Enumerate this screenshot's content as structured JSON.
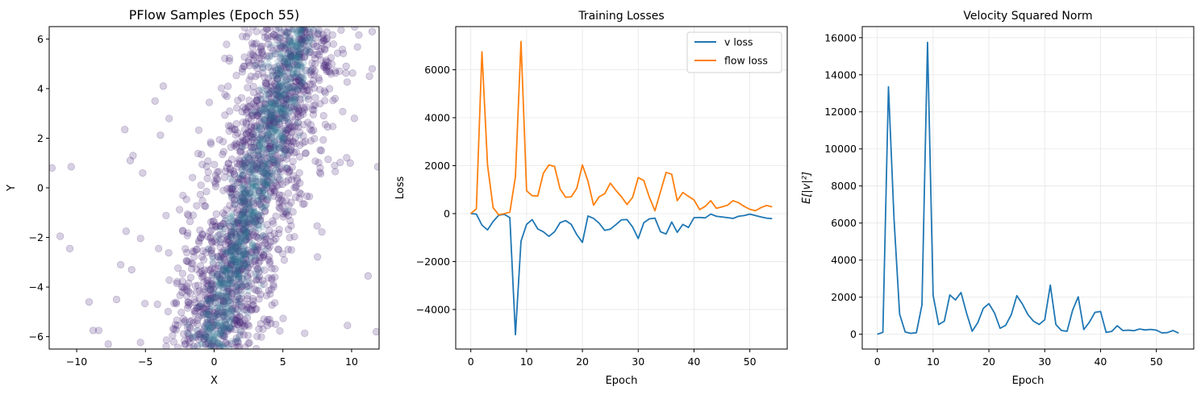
{
  "chart_data": [
    {
      "type": "scatter",
      "title": "PFlow Samples (Epoch 55)",
      "xlabel": "X",
      "ylabel": "Y",
      "xlim": [
        -12,
        12
      ],
      "ylim": [
        -6.5,
        6.5
      ],
      "xticks": [
        -10,
        -5,
        0,
        5,
        10
      ],
      "yticks": [
        -6,
        -4,
        -2,
        0,
        2,
        4,
        6
      ],
      "grid": false,
      "colors": {
        "outer": "#4b2a7a",
        "inner": "#2c728e"
      },
      "points": [
        [
          -11.8,
          0.8
        ],
        [
          -10.4,
          0.85
        ],
        [
          -10.5,
          -2.45
        ],
        [
          -11.2,
          -1.95
        ],
        [
          -9.1,
          -4.6
        ],
        [
          -8.4,
          -5.75
        ],
        [
          -8.8,
          -5.75
        ],
        [
          -7.7,
          -6.3
        ],
        [
          -6.5,
          2.35
        ],
        [
          -6.1,
          1.1
        ],
        [
          -5.9,
          1.3
        ],
        [
          -6.4,
          -1.75
        ],
        [
          -6.8,
          -3.1
        ],
        [
          -6.0,
          -3.3
        ],
        [
          -5.2,
          0.6
        ],
        [
          -4.3,
          3.5
        ],
        [
          -3.7,
          4.1
        ],
        [
          -7.1,
          -4.5
        ],
        [
          11.5,
          4.8
        ],
        [
          11.3,
          4.5
        ],
        [
          11.9,
          0.85
        ],
        [
          11.2,
          -3.55
        ],
        [
          11.8,
          -5.8
        ],
        [
          9.7,
          -5.55
        ],
        [
          9.9,
          1.0
        ],
        [
          10.2,
          2.8
        ],
        [
          11.5,
          6.3
        ],
        [
          9.6,
          4.9
        ],
        [
          8.8,
          3.6
        ],
        [
          7.8,
          1.5
        ]
      ]
    },
    {
      "type": "line",
      "title": "Training Losses",
      "xlabel": "Epoch",
      "ylabel": "Loss",
      "xlim": [
        -2.7,
        56.7
      ],
      "ylim": [
        -5650,
        7800
      ],
      "xticks": [
        0,
        10,
        20,
        30,
        40,
        50
      ],
      "yticks": [
        -4000,
        -2000,
        0,
        2000,
        4000,
        6000
      ],
      "grid": true,
      "legend": "top-right",
      "x": [
        0,
        1,
        2,
        3,
        4,
        5,
        6,
        7,
        8,
        9,
        10,
        11,
        12,
        13,
        14,
        15,
        16,
        17,
        18,
        19,
        20,
        21,
        22,
        23,
        24,
        25,
        26,
        27,
        28,
        29,
        30,
        31,
        32,
        33,
        34,
        35,
        36,
        37,
        38,
        39,
        40,
        41,
        42,
        43,
        44,
        45,
        46,
        47,
        48,
        49,
        50,
        51,
        52,
        53,
        54
      ],
      "series": [
        {
          "name": "v loss",
          "color": "#1f77b4",
          "values": [
            0,
            -20,
            -480,
            -680,
            -330,
            -70,
            -30,
            -170,
            -5050,
            -1150,
            -450,
            -250,
            -640,
            -760,
            -950,
            -760,
            -380,
            -290,
            -450,
            -880,
            -1200,
            -100,
            -200,
            -400,
            -700,
            -650,
            -460,
            -260,
            -250,
            -560,
            -1040,
            -380,
            -220,
            -190,
            -760,
            -850,
            -350,
            -780,
            -450,
            -580,
            -170,
            -160,
            -180,
            -20,
            -110,
            -140,
            -170,
            -200,
            -110,
            -80,
            -20,
            -80,
            -140,
            -190,
            -210
          ]
        },
        {
          "name": "flow loss",
          "color": "#ff7f0e",
          "values": [
            0,
            200,
            6750,
            2030,
            250,
            -50,
            0,
            60,
            1540,
            7180,
            950,
            750,
            730,
            1680,
            2030,
            1970,
            1030,
            680,
            700,
            1060,
            2030,
            1350,
            350,
            700,
            830,
            1270,
            970,
            700,
            380,
            680,
            1500,
            1380,
            680,
            120,
            920,
            1720,
            1640,
            540,
            880,
            720,
            570,
            170,
            300,
            540,
            220,
            280,
            350,
            540,
            450,
            300,
            180,
            120,
            250,
            340,
            280
          ]
        }
      ]
    },
    {
      "type": "line",
      "title": "Velocity Squared Norm",
      "xlabel": "Epoch",
      "ylabel": "E[|v|²]",
      "xlim": [
        -2.7,
        56.7
      ],
      "ylim": [
        -800,
        16600
      ],
      "xticks": [
        0,
        10,
        20,
        30,
        40,
        50
      ],
      "yticks": [
        0,
        2000,
        4000,
        6000,
        8000,
        10000,
        12000,
        14000,
        16000
      ],
      "grid": true,
      "x": [
        0,
        1,
        2,
        3,
        4,
        5,
        6,
        7,
        8,
        9,
        10,
        11,
        12,
        13,
        14,
        15,
        16,
        17,
        18,
        19,
        20,
        21,
        22,
        23,
        24,
        25,
        26,
        27,
        28,
        29,
        30,
        31,
        32,
        33,
        34,
        35,
        36,
        37,
        38,
        39,
        40,
        41,
        42,
        43,
        44,
        45,
        46,
        47,
        48,
        49,
        50,
        51,
        52,
        53,
        54
      ],
      "series": [
        {
          "color": "#1f77b4",
          "values": [
            0,
            100,
            13350,
            6200,
            1080,
            120,
            50,
            80,
            1580,
            15750,
            2100,
            520,
            700,
            2120,
            1850,
            2250,
            1130,
            160,
            620,
            1400,
            1650,
            1150,
            320,
            480,
            1050,
            2080,
            1630,
            1050,
            700,
            530,
            780,
            2650,
            520,
            200,
            160,
            1300,
            2020,
            250,
            650,
            1180,
            1230,
            100,
            150,
            460,
            200,
            220,
            190,
            280,
            230,
            260,
            220,
            70,
            90,
            200,
            60
          ]
        }
      ]
    }
  ]
}
